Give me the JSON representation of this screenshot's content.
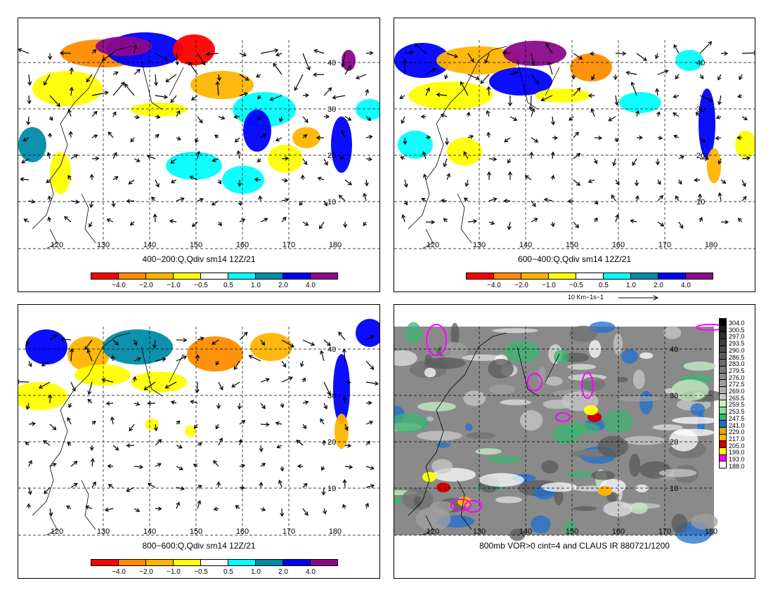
{
  "panels": [
    {
      "caption": "400−200:Q,Qdiv sm14 12Z/21"
    },
    {
      "caption": "600−400:Q,Qdiv sm14 12Z/21"
    },
    {
      "caption": "800−600:Q,Qdiv sm14 12Z/21"
    },
    {
      "caption": "800mb VOR>0 cint=4 and CLAUS IR 880721/1200"
    }
  ],
  "map": {
    "lon_ticks": [
      "120",
      "130",
      "140",
      "150",
      "160",
      "170",
      "180"
    ],
    "lat_ticks": [
      "10",
      "20",
      "30",
      "40"
    ]
  },
  "colorbar": {
    "colors": [
      "#ff0000",
      "#ff8c00",
      "#ffb400",
      "#ffff00",
      "#ffffff",
      "#00ffff",
      "#008ba8",
      "#0000ff",
      "#8b0a8b"
    ],
    "labels": [
      "−4.0",
      "−2.0",
      "−1.0",
      "−0.5",
      "0.5",
      "1.0",
      "2.0",
      "4.0"
    ]
  },
  "vector_scale": {
    "label": "10 Km−1s−1"
  },
  "ir_colorbar": {
    "labels": [
      "304.0",
      "300.5",
      "297.0",
      "293.5",
      "290.0",
      "286.5",
      "283.0",
      "279.5",
      "276.0",
      "272.5",
      "269.0",
      "265.5",
      "259.5",
      "253.5",
      "247.5",
      "241.0",
      "229.0",
      "217.0",
      "205.0",
      "199.0",
      "193.0",
      "188.0"
    ],
    "colors": [
      "#000000",
      "#1c1c1c",
      "#2e2e2e",
      "#3d3d3d",
      "#4c4c4c",
      "#5c5c5c",
      "#6b6b6b",
      "#7b7b7b",
      "#8b8b8b",
      "#9c9c9c",
      "#b0b0b0",
      "#c8c8c8",
      "#c6f0c6",
      "#8fdc8f",
      "#3cb371",
      "#1e6fd0",
      "#e2a200",
      "#ffb400",
      "#cc0000",
      "#ffff00",
      "#ff00ff",
      "#ffffff"
    ]
  }
}
